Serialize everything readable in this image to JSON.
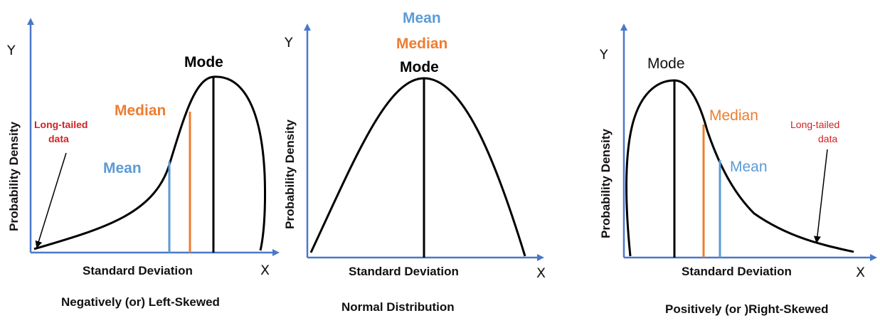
{
  "colors": {
    "axis": "#4a78c8",
    "curve": "#000000",
    "mode": "#000000",
    "median": "#ed7d31",
    "mean": "#5b9bd5",
    "long_tail": "#d42020"
  },
  "panels": [
    {
      "caption": "Negatively (or) Left-Skewed",
      "y_letter": "Y",
      "x_letter": "X",
      "ylabel": "Probability Density",
      "xlabel": "Standard Deviation",
      "mode_label": "Mode",
      "median_label": "Median",
      "mean_label": "Mean",
      "tail_line1": "Long-tailed",
      "tail_line2": "data"
    },
    {
      "caption": "Normal Distribution",
      "y_letter": "Y",
      "x_letter": "X",
      "ylabel": "Probability Density",
      "xlabel": "Standard Deviation",
      "mean_label": "Mean",
      "median_label": "Median",
      "mode_label": "Mode"
    },
    {
      "caption": "Positively (or )Right-Skewed",
      "y_letter": "Y",
      "x_letter": "X",
      "ylabel": "Probability Density",
      "xlabel": "Standard Deviation",
      "mode_label": "Mode",
      "median_label": "Median",
      "mean_label": "Mean",
      "tail_line1": "Long-tailed",
      "tail_line2": "data"
    }
  ]
}
